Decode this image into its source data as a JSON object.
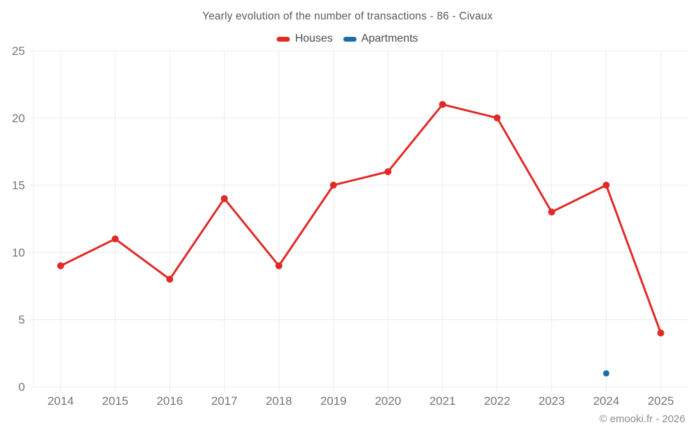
{
  "title": "Yearly evolution of the number of transactions - 86 - Civaux",
  "footer": {
    "copyright": "© emooki.fr - 2026"
  },
  "colors": {
    "background": "#ffffff",
    "grid": "#ececec",
    "axis_text": "#757575",
    "title_text": "#595959",
    "legend_text": "#4a4a4a",
    "footer_text": "#8c8c8c",
    "houses": "#e12a27",
    "apartments": "#1a6fa5"
  },
  "chart_data": {
    "type": "line",
    "title": "Yearly evolution of the number of transactions - 86 - Civaux",
    "categories": [
      "2014",
      "2015",
      "2016",
      "2017",
      "2018",
      "2019",
      "2020",
      "2021",
      "2022",
      "2023",
      "2024",
      "2025"
    ],
    "series": [
      {
        "name": "Houses",
        "color": "#e12a27",
        "values": [
          9,
          11,
          8,
          14,
          9,
          15,
          16,
          21,
          20,
          13,
          15,
          4
        ]
      },
      {
        "name": "Apartments",
        "color": "#1a6fa5",
        "values": [
          null,
          null,
          null,
          null,
          null,
          null,
          null,
          null,
          null,
          null,
          1,
          null
        ]
      }
    ],
    "xlabel": "",
    "ylabel": "",
    "ylim": [
      0,
      25
    ],
    "yticks": [
      0,
      5,
      10,
      15,
      20,
      25
    ],
    "grid": true,
    "legend_position": "top"
  }
}
